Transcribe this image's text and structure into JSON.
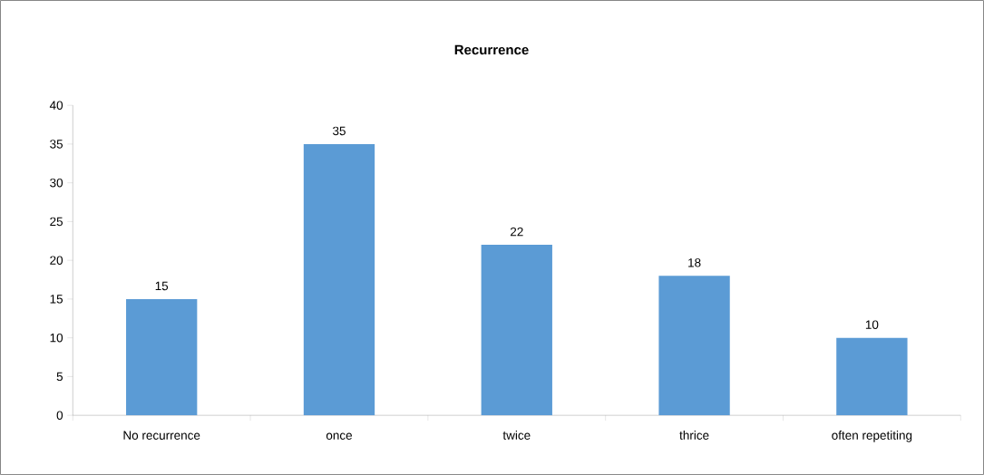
{
  "chart_data": {
    "type": "bar",
    "title": "Recurrence",
    "categories": [
      "No recurrence",
      "once",
      "twice",
      "thrice",
      "often repetiting"
    ],
    "values": [
      15,
      35,
      22,
      18,
      10
    ],
    "color": "#5b9bd5",
    "ylim": [
      0,
      40
    ],
    "yticks": [
      0,
      5,
      10,
      15,
      20,
      25,
      30,
      35,
      40
    ],
    "data_labels": true
  }
}
